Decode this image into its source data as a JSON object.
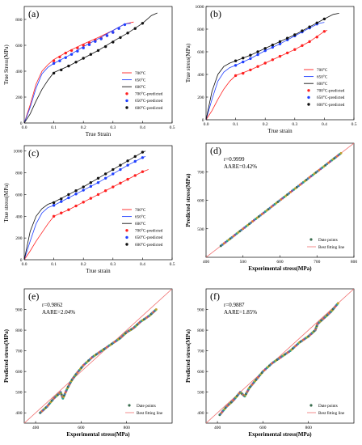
{
  "colors": {
    "t700": "#ff2020",
    "t650": "#2040ff",
    "t600": "#111111",
    "fit": "#f07070",
    "pts": [
      "#3a6e4f",
      "#4a7bb0",
      "#e07a2e",
      "#8a4ea0",
      "#2aa08a",
      "#c0a030"
    ]
  },
  "chart_data": [
    {
      "id": "a",
      "type": "line",
      "panel_label": "(a)",
      "xlabel": "True Strain",
      "ylabel": "True Stress(MPa)",
      "xlim": [
        0,
        0.5
      ],
      "ylim": [
        0,
        900
      ],
      "xticks": [
        0,
        0.1,
        0.2,
        0.3,
        0.4,
        0.5
      ],
      "xtick_labels": [
        "0.0",
        "0.1",
        "0.2",
        "0.3",
        "0.4",
        "0.5"
      ],
      "yticks": [
        0,
        200,
        400,
        600,
        800
      ],
      "ytick_labels": [
        "0",
        "200",
        "400",
        "600",
        "800"
      ],
      "legend_position": "bottom-right",
      "series": [
        {
          "name": "700°C",
          "kind": "line",
          "color": "#ff2020",
          "x": [
            0,
            0.02,
            0.04,
            0.06,
            0.08,
            0.1,
            0.15,
            0.2,
            0.25,
            0.3,
            0.34,
            0.37
          ],
          "y": [
            0,
            140,
            300,
            400,
            450,
            490,
            555,
            610,
            660,
            715,
            765,
            780
          ]
        },
        {
          "name": "650°C",
          "kind": "line",
          "color": "#2040ff",
          "x": [
            0,
            0.02,
            0.04,
            0.06,
            0.08,
            0.1,
            0.15,
            0.2,
            0.25,
            0.3,
            0.34,
            0.36
          ],
          "y": [
            0,
            120,
            270,
            380,
            430,
            460,
            520,
            590,
            650,
            715,
            765,
            770
          ]
        },
        {
          "name": "600°C",
          "kind": "line",
          "color": "#111111",
          "x": [
            0,
            0.02,
            0.04,
            0.06,
            0.08,
            0.1,
            0.15,
            0.2,
            0.25,
            0.3,
            0.35,
            0.4,
            0.43,
            0.45
          ],
          "y": [
            0,
            70,
            170,
            260,
            330,
            390,
            440,
            500,
            560,
            630,
            695,
            770,
            830,
            850
          ]
        },
        {
          "name": "700°C-predicted",
          "kind": "points",
          "color": "#ff2020",
          "x": [
            0.1,
            0.12,
            0.14,
            0.16,
            0.18,
            0.2,
            0.22,
            0.24,
            0.26,
            0.28,
            0.3
          ],
          "y": [
            480,
            510,
            540,
            560,
            580,
            600,
            620,
            640,
            655,
            675,
            700
          ]
        },
        {
          "name": "650°C-predicted",
          "kind": "points",
          "color": "#2040ff",
          "x": [
            0.1,
            0.12,
            0.14,
            0.16,
            0.18,
            0.2,
            0.22,
            0.24,
            0.26,
            0.28,
            0.3,
            0.32,
            0.34
          ],
          "y": [
            460,
            480,
            505,
            530,
            555,
            580,
            605,
            630,
            650,
            675,
            700,
            730,
            760
          ]
        },
        {
          "name": "600°C-predicted",
          "kind": "points",
          "color": "#111111",
          "x": [
            0.1,
            0.125,
            0.15,
            0.175,
            0.2,
            0.225,
            0.25,
            0.275,
            0.3,
            0.325,
            0.35,
            0.375,
            0.4
          ],
          "y": [
            385,
            410,
            440,
            470,
            500,
            530,
            560,
            590,
            625,
            660,
            695,
            730,
            770
          ]
        }
      ]
    },
    {
      "id": "b",
      "type": "line",
      "panel_label": "(b)",
      "xlabel": "True strain",
      "ylabel": "True stress(MPa)",
      "xlim": [
        0,
        0.5
      ],
      "ylim": [
        0,
        1000
      ],
      "xticks": [
        0,
        0.1,
        0.2,
        0.3,
        0.4,
        0.5
      ],
      "xtick_labels": [
        "0.0",
        "0.1",
        "0.2",
        "0.3",
        "0.4",
        "0.5"
      ],
      "yticks": [
        0,
        200,
        400,
        600,
        800,
        1000
      ],
      "ytick_labels": [
        "0",
        "200",
        "400",
        "600",
        "800",
        "1000"
      ],
      "legend_position": "bottom-right",
      "series": [
        {
          "name": "700°C",
          "kind": "line",
          "color": "#ff2020",
          "x": [
            0,
            0.02,
            0.04,
            0.06,
            0.08,
            0.1,
            0.15,
            0.2,
            0.25,
            0.3,
            0.35,
            0.4,
            0.41
          ],
          "y": [
            0,
            80,
            180,
            270,
            340,
            390,
            440,
            500,
            560,
            620,
            690,
            780,
            790
          ]
        },
        {
          "name": "650°C",
          "kind": "line",
          "color": "#2040ff",
          "x": [
            0,
            0.02,
            0.04,
            0.06,
            0.08,
            0.1,
            0.15,
            0.2,
            0.25,
            0.3,
            0.35,
            0.38,
            0.4
          ],
          "y": [
            0,
            180,
            340,
            420,
            460,
            480,
            540,
            610,
            670,
            740,
            810,
            850,
            860
          ]
        },
        {
          "name": "600°C",
          "kind": "line",
          "color": "#111111",
          "x": [
            0,
            0.02,
            0.04,
            0.06,
            0.08,
            0.1,
            0.15,
            0.2,
            0.25,
            0.3,
            0.35,
            0.4,
            0.43,
            0.45
          ],
          "y": [
            0,
            250,
            400,
            470,
            500,
            520,
            570,
            630,
            690,
            750,
            820,
            890,
            930,
            940
          ]
        },
        {
          "name": "700°C-predicted",
          "kind": "points",
          "color": "#ff2020",
          "x": [
            0.1,
            0.125,
            0.15,
            0.175,
            0.2,
            0.225,
            0.25,
            0.275,
            0.3,
            0.325,
            0.35,
            0.375,
            0.4
          ],
          "y": [
            390,
            410,
            440,
            470,
            500,
            530,
            560,
            590,
            620,
            655,
            690,
            730,
            780
          ]
        },
        {
          "name": "650°C-predicted",
          "kind": "points",
          "color": "#2040ff",
          "x": [
            0.1,
            0.125,
            0.15,
            0.175,
            0.2,
            0.225,
            0.25,
            0.275,
            0.3,
            0.325,
            0.35,
            0.375
          ],
          "y": [
            480,
            510,
            540,
            575,
            610,
            640,
            670,
            705,
            740,
            775,
            810,
            845
          ]
        },
        {
          "name": "600°C-predicted",
          "kind": "points",
          "color": "#111111",
          "x": [
            0.1,
            0.125,
            0.15,
            0.175,
            0.2,
            0.225,
            0.25,
            0.275,
            0.3,
            0.325,
            0.35,
            0.375,
            0.4
          ],
          "y": [
            520,
            545,
            570,
            600,
            630,
            660,
            690,
            720,
            750,
            785,
            820,
            855,
            890
          ]
        }
      ]
    },
    {
      "id": "c",
      "type": "line",
      "panel_label": "(c)",
      "xlabel": "True strain",
      "ylabel": "True stress(MPa)",
      "xlim": [
        0,
        0.5
      ],
      "ylim": [
        0,
        1050
      ],
      "xticks": [
        0,
        0.1,
        0.2,
        0.3,
        0.4,
        0.5
      ],
      "xtick_labels": [
        "0.0",
        "0.1",
        "0.2",
        "0.3",
        "0.4",
        "0.5"
      ],
      "yticks": [
        0,
        200,
        400,
        600,
        800,
        1000
      ],
      "ytick_labels": [
        "0",
        "200",
        "400",
        "600",
        "800",
        "1000"
      ],
      "legend_position": "bottom-right",
      "series": [
        {
          "name": "700°C",
          "kind": "line",
          "color": "#ff2020",
          "x": [
            0,
            0.02,
            0.04,
            0.06,
            0.08,
            0.1,
            0.15,
            0.2,
            0.25,
            0.3,
            0.35,
            0.4,
            0.42
          ],
          "y": [
            0,
            80,
            170,
            250,
            330,
            400,
            460,
            530,
            600,
            670,
            740,
            810,
            830
          ]
        },
        {
          "name": "650°C",
          "kind": "line",
          "color": "#2040ff",
          "x": [
            0,
            0.02,
            0.04,
            0.06,
            0.08,
            0.1,
            0.15,
            0.2,
            0.25,
            0.3,
            0.35,
            0.4,
            0.41
          ],
          "y": [
            0,
            170,
            330,
            430,
            480,
            500,
            570,
            640,
            710,
            790,
            870,
            940,
            950
          ]
        },
        {
          "name": "600°C",
          "kind": "line",
          "color": "#111111",
          "x": [
            0,
            0.02,
            0.04,
            0.06,
            0.08,
            0.1,
            0.15,
            0.2,
            0.25,
            0.3,
            0.35,
            0.4,
            0.41
          ],
          "y": [
            0,
            260,
            400,
            470,
            510,
            530,
            600,
            670,
            750,
            830,
            910,
            990,
            1000
          ]
        },
        {
          "name": "700°C-predicted",
          "kind": "points",
          "color": "#ff2020",
          "x": [
            0.1,
            0.125,
            0.15,
            0.175,
            0.2,
            0.225,
            0.25,
            0.275,
            0.3,
            0.325,
            0.35,
            0.375,
            0.4
          ],
          "y": [
            400,
            430,
            460,
            495,
            530,
            565,
            600,
            635,
            670,
            705,
            740,
            775,
            810
          ]
        },
        {
          "name": "650°C-predicted",
          "kind": "points",
          "color": "#2040ff",
          "x": [
            0.1,
            0.125,
            0.15,
            0.175,
            0.2,
            0.225,
            0.25,
            0.275,
            0.3,
            0.325,
            0.35,
            0.375,
            0.4
          ],
          "y": [
            500,
            535,
            570,
            605,
            640,
            675,
            710,
            750,
            790,
            830,
            870,
            905,
            940
          ]
        },
        {
          "name": "600°C-predicted",
          "kind": "points",
          "color": "#111111",
          "x": [
            0.1,
            0.125,
            0.15,
            0.175,
            0.2,
            0.225,
            0.25,
            0.275,
            0.3,
            0.325,
            0.35,
            0.375,
            0.4
          ],
          "y": [
            525,
            560,
            600,
            635,
            670,
            710,
            750,
            790,
            830,
            870,
            910,
            950,
            990
          ]
        }
      ]
    },
    {
      "id": "d",
      "type": "scatter",
      "panel_label": "(d)",
      "xlabel": "Experimental stress(MPa)",
      "ylabel": "Predicted stress(MPa)",
      "xlim": [
        400,
        800
      ],
      "ylim": [
        400,
        800
      ],
      "xticks": [
        400,
        500,
        600,
        700,
        800
      ],
      "xtick_labels": [
        "400",
        "500",
        "600",
        "700",
        "800"
      ],
      "yticks": [
        500,
        600,
        700
      ],
      "ytick_labels": [
        "500",
        "600",
        "700"
      ],
      "annotations": [
        "r=0.9999",
        "AARE=0.42%"
      ],
      "legend_position": "bottom-right",
      "legend": [
        "Date points",
        "Best fitting line"
      ],
      "fit_line": {
        "x": [
          400,
          800
        ],
        "y": [
          400,
          800
        ]
      },
      "points": {
        "x": [
          440,
          470,
          500,
          530,
          560,
          590,
          620,
          650,
          680,
          710,
          740,
          765
        ],
        "y": [
          440,
          470,
          500,
          530,
          560,
          590,
          620,
          650,
          680,
          710,
          740,
          765
        ]
      }
    },
    {
      "id": "e",
      "type": "scatter",
      "panel_label": "(e)",
      "xlabel": "Experimental stress(MPa)",
      "ylabel": "Predicted stress(MPa)",
      "xlim": [
        350,
        1000
      ],
      "ylim": [
        350,
        1000
      ],
      "xticks": [
        400,
        600,
        800
      ],
      "xtick_labels": [
        "400",
        "600",
        "800"
      ],
      "yticks": [
        400,
        500,
        600,
        700,
        800,
        900
      ],
      "ytick_labels": [
        "400",
        "500",
        "600",
        "700",
        "800",
        "900"
      ],
      "annotations": [
        "r=0.9862",
        "AARE=2.04%"
      ],
      "legend_position": "bottom-right",
      "legend": [
        "Date points",
        "Best fitting line"
      ],
      "fit_line": {
        "x": [
          350,
          1000
        ],
        "y": [
          350,
          1000
        ]
      },
      "points": {
        "x": [
          420,
          450,
          480,
          510,
          520,
          540,
          560,
          580,
          610,
          650,
          690,
          730,
          770,
          800,
          830,
          860,
          900,
          930
        ],
        "y": [
          400,
          430,
          470,
          500,
          470,
          520,
          560,
          590,
          630,
          670,
          700,
          730,
          760,
          790,
          810,
          840,
          870,
          900
        ]
      }
    },
    {
      "id": "f",
      "type": "scatter",
      "panel_label": "(f)",
      "xlabel": "Experimental stress(MPa)",
      "ylabel": "Predicted stress(MPa)",
      "xlim": [
        350,
        1000
      ],
      "ylim": [
        350,
        1000
      ],
      "xticks": [
        400,
        600,
        800
      ],
      "xtick_labels": [
        "400",
        "600",
        "800"
      ],
      "yticks": [
        400,
        500,
        600,
        700,
        800,
        900
      ],
      "ytick_labels": [
        "400",
        "500",
        "600",
        "700",
        "800",
        "900"
      ],
      "annotations": [
        "r=0.9887",
        "AARE=1.85%"
      ],
      "legend_position": "bottom-right",
      "legend": [
        "Date points",
        "Best fitting line"
      ],
      "fit_line": {
        "x": [
          350,
          1000
        ],
        "y": [
          350,
          1000
        ]
      },
      "points": {
        "x": [
          410,
          440,
          470,
          500,
          520,
          540,
          570,
          600,
          640,
          680,
          720,
          760,
          800,
          830,
          840,
          870,
          900,
          930
        ],
        "y": [
          390,
          430,
          460,
          500,
          480,
          520,
          560,
          600,
          640,
          670,
          700,
          740,
          770,
          800,
          830,
          860,
          890,
          930
        ]
      }
    }
  ]
}
